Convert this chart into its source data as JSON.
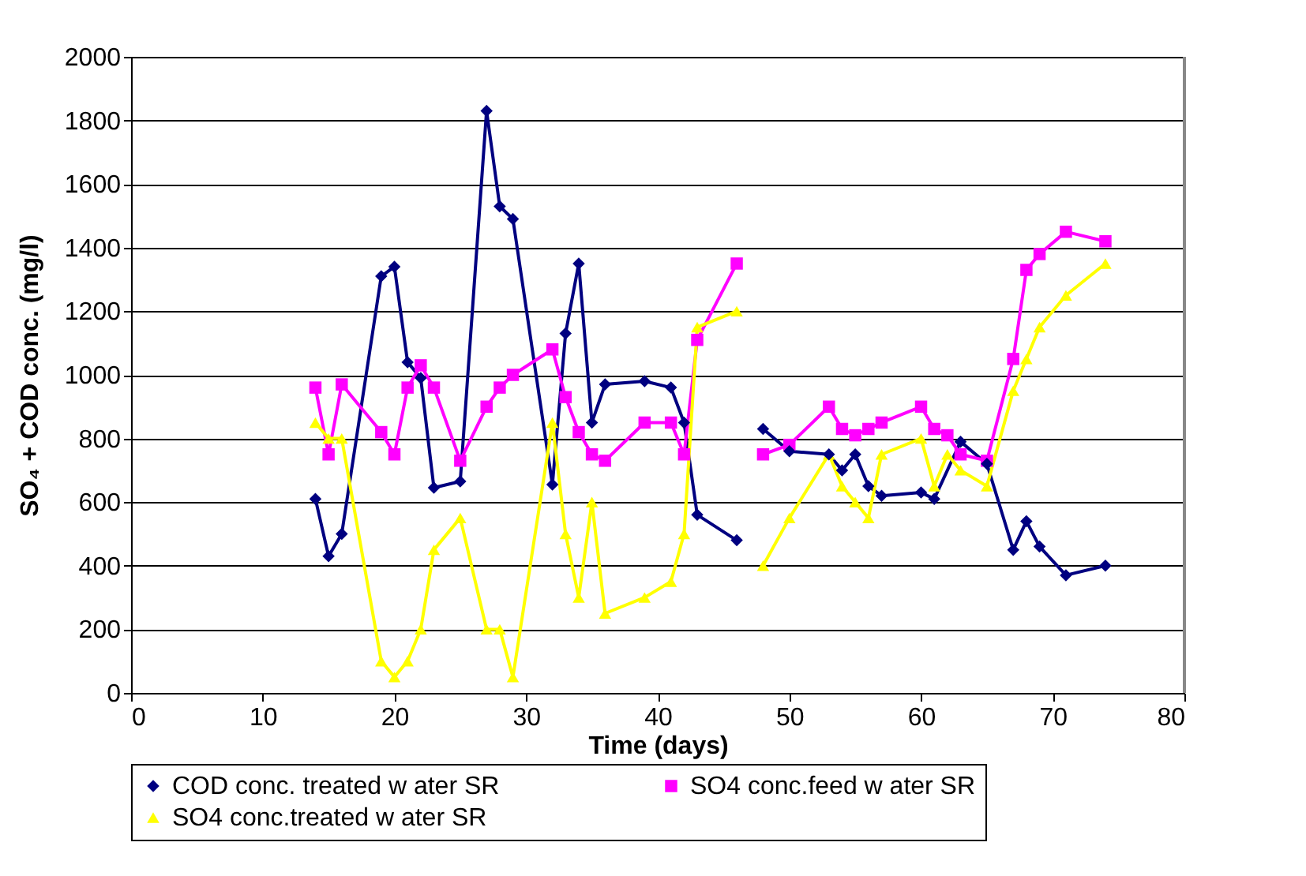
{
  "chart_data": {
    "type": "line",
    "xlabel": "Time (days)",
    "ylabel": "SO₄ + COD conc. (mg/l)",
    "xlim": [
      0,
      80
    ],
    "xticks": [
      0,
      10,
      20,
      30,
      40,
      50,
      60,
      70,
      80
    ],
    "ylim": [
      0,
      2000
    ],
    "yticks": [
      0,
      200,
      400,
      600,
      800,
      1000,
      1200,
      1400,
      1600,
      1800,
      2000
    ],
    "grid": "y",
    "legend": "bottom",
    "series": [
      {
        "name": "COD conc. treated w ater SR",
        "color": "#000080",
        "marker": "diamond",
        "x": [
          14,
          15,
          16,
          19,
          20,
          21,
          22,
          23,
          25,
          27,
          28,
          29,
          32,
          33,
          34,
          35,
          36,
          39,
          41,
          42,
          43,
          46,
          47,
          48,
          50,
          53,
          54,
          55,
          56,
          57,
          60,
          61,
          63,
          65,
          67,
          68,
          69,
          71,
          74
        ],
        "values": [
          610,
          430,
          500,
          1310,
          1340,
          1040,
          990,
          645,
          665,
          1830,
          1530,
          1490,
          655,
          1130,
          1350,
          850,
          970,
          980,
          960,
          850,
          560,
          480,
          null,
          830,
          760,
          750,
          700,
          750,
          650,
          620,
          630,
          610,
          790,
          720,
          450,
          540,
          460,
          370,
          400
        ]
      },
      {
        "name": "SO4 conc.feed w ater SR",
        "color": "#ff00ff",
        "marker": "square",
        "x": [
          14,
          15,
          16,
          19,
          20,
          21,
          22,
          23,
          25,
          27,
          28,
          29,
          32,
          33,
          34,
          35,
          36,
          39,
          41,
          42,
          43,
          46,
          47,
          48,
          50,
          53,
          54,
          55,
          56,
          57,
          60,
          61,
          62,
          63,
          65,
          67,
          68,
          69,
          71,
          74
        ],
        "values": [
          960,
          750,
          970,
          820,
          750,
          960,
          1030,
          960,
          730,
          900,
          960,
          1000,
          1080,
          930,
          820,
          750,
          730,
          850,
          850,
          750,
          1110,
          1350,
          null,
          750,
          780,
          900,
          830,
          810,
          830,
          850,
          900,
          830,
          810,
          750,
          730,
          1050,
          1330,
          1380,
          1450,
          1420
        ]
      },
      {
        "name": "SO4 conc.treated w ater SR",
        "color": "#ffff00",
        "marker": "triangle",
        "x": [
          14,
          15,
          16,
          19,
          20,
          21,
          22,
          23,
          25,
          27,
          28,
          29,
          32,
          33,
          34,
          35,
          36,
          39,
          41,
          42,
          43,
          46,
          47,
          48,
          50,
          53,
          54,
          55,
          56,
          57,
          60,
          61,
          62,
          63,
          65,
          67,
          68,
          69,
          71,
          74
        ],
        "values": [
          850,
          800,
          800,
          100,
          50,
          100,
          200,
          450,
          550,
          200,
          200,
          50,
          850,
          500,
          300,
          600,
          250,
          300,
          350,
          500,
          1150,
          1200,
          null,
          400,
          550,
          750,
          650,
          600,
          550,
          750,
          800,
          650,
          750,
          700,
          650,
          950,
          1050,
          1150,
          1250,
          1350
        ]
      }
    ]
  }
}
